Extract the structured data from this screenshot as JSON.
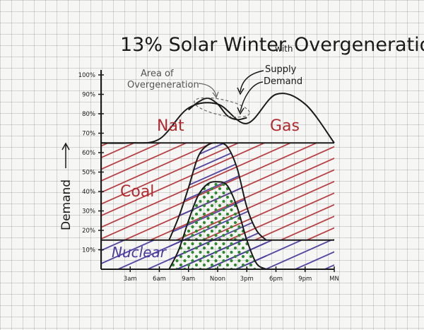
{
  "chart_data": {
    "type": "area",
    "title": "13% Solar Winter",
    "title_small": "with",
    "title_end": "Overgeneration",
    "ylabel": "Demand",
    "yticks": [
      "10%",
      "20%",
      "30%",
      "40%",
      "50%",
      "60%",
      "70%",
      "80%",
      "90%",
      "100%"
    ],
    "ylim": [
      0,
      100
    ],
    "xticks": [
      "3am",
      "6am",
      "9am",
      "Noon",
      "3pm",
      "6pm",
      "9pm",
      "MN"
    ],
    "x": [
      0,
      3,
      6,
      9,
      12,
      15,
      18,
      21,
      24
    ],
    "series": [
      {
        "name": "Nuclear",
        "values": [
          15,
          15,
          15,
          15,
          15,
          15,
          15,
          15,
          15
        ],
        "color": "#4b3a9e",
        "pattern": "hatch"
      },
      {
        "name": "Coal",
        "values": [
          50,
          50,
          50,
          50,
          50,
          50,
          50,
          50,
          50
        ],
        "color": "#b22a2f",
        "pattern": "hatch"
      },
      {
        "name": "Nat Gas",
        "values": [
          0,
          0,
          2,
          18,
          20,
          10,
          25,
          20,
          0
        ],
        "color": "#b22a2f",
        "pattern": "blank"
      },
      {
        "name": "Solar",
        "x": [
          7,
          8,
          9,
          10,
          11,
          12,
          13,
          14,
          15,
          16,
          17
        ],
        "values": [
          0,
          10,
          25,
          38,
          44,
          45,
          43,
          32,
          15,
          3,
          0
        ],
        "color": "#2e8b2e",
        "pattern": "dots"
      }
    ],
    "supply": {
      "x": [
        9,
        10,
        11,
        12,
        13,
        14,
        15
      ],
      "values": [
        82,
        86,
        88,
        85,
        79,
        77,
        78
      ]
    },
    "annotations": [
      "Area of Overgeneration",
      "Supply",
      "Demand"
    ],
    "region_labels": [
      "Nat",
      "Gas",
      "Coal",
      "Nuclear"
    ],
    "grid": true
  }
}
